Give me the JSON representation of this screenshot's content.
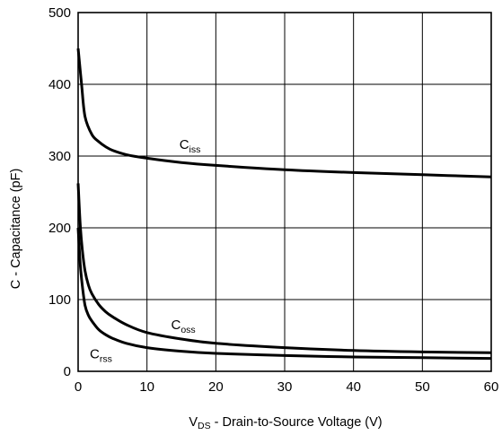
{
  "chart_data": {
    "type": "line",
    "title": "",
    "xlabel": {
      "main": "V",
      "sub": "DS",
      "rest": " - Drain-to-Source Voltage (V)"
    },
    "ylabel": "C - Capacitance (pF)",
    "xlim": [
      0,
      60
    ],
    "ylim": [
      0,
      500
    ],
    "xticks": [
      0,
      10,
      20,
      30,
      40,
      50,
      60
    ],
    "yticks": [
      0,
      100,
      200,
      300,
      400,
      500
    ],
    "grid": true,
    "series": [
      {
        "name": "Ciss",
        "label_main": "C",
        "label_sub": "iss",
        "x": [
          0,
          0.5,
          1,
          2,
          3,
          4,
          5,
          7,
          10,
          15,
          20,
          30,
          40,
          50,
          60
        ],
        "y": [
          450,
          400,
          355,
          330,
          320,
          313,
          308,
          302,
          297,
          291,
          287,
          281,
          277,
          274,
          271
        ]
      },
      {
        "name": "Coss",
        "label_main": "C",
        "label_sub": "oss",
        "x": [
          0,
          0.3,
          0.6,
          1,
          1.5,
          2,
          3,
          4,
          5,
          7,
          10,
          15,
          20,
          30,
          40,
          50,
          60
        ],
        "y": [
          262,
          205,
          170,
          140,
          120,
          108,
          93,
          83,
          76,
          65,
          54,
          45,
          39,
          33,
          29,
          27,
          26
        ]
      },
      {
        "name": "Crss",
        "label_main": "C",
        "label_sub": "rss",
        "x": [
          0,
          0.3,
          0.6,
          1,
          1.5,
          2,
          3,
          4,
          5,
          7,
          10,
          15,
          20,
          30,
          40,
          50,
          60
        ],
        "y": [
          200,
          150,
          120,
          92,
          78,
          70,
          58,
          51,
          46,
          39,
          33,
          28,
          25,
          22,
          20,
          19,
          18
        ]
      }
    ]
  }
}
